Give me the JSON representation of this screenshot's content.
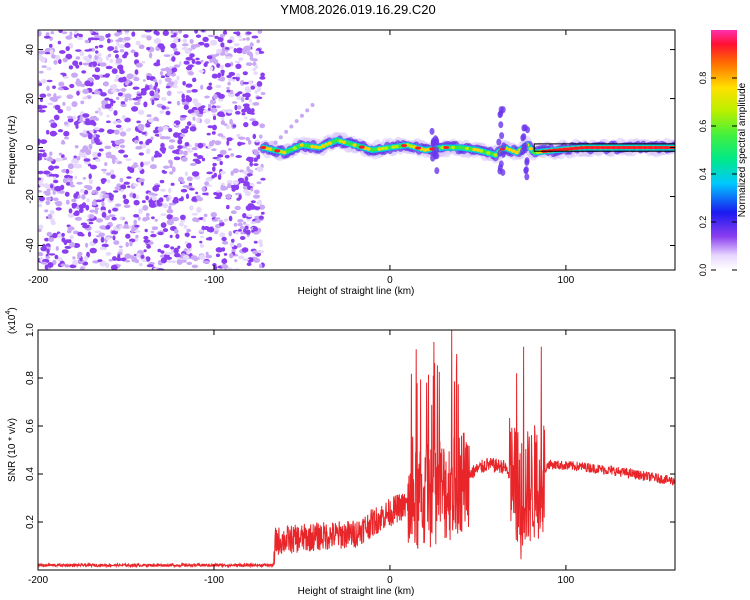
{
  "figure_title": "YM08.2026.019.16.29.C20",
  "colors": {
    "line": "#e8262a",
    "axis": "#000000",
    "scatter": "#8a3ef0",
    "scatter_light": "#c9a8f5"
  },
  "chart_data": [
    {
      "type": "heatmap",
      "title": "",
      "xlabel": "Height of straight line (km)",
      "ylabel": "Frequency (Hz)",
      "xlim": [
        -200,
        162
      ],
      "ylim": [
        -50,
        48
      ],
      "xticks": [
        -200,
        -100,
        0,
        100
      ],
      "yticks": [
        -40,
        -20,
        0,
        20,
        40
      ],
      "noise_region_x": [
        -200,
        -72
      ],
      "signal_band": {
        "segments": [
          {
            "x": -72,
            "y": 0
          },
          {
            "x": -60,
            "y": -2
          },
          {
            "x": -50,
            "y": 1
          },
          {
            "x": -40,
            "y": 0
          },
          {
            "x": -30,
            "y": 3
          },
          {
            "x": -20,
            "y": 1
          },
          {
            "x": -10,
            "y": -1
          },
          {
            "x": 0,
            "y": 0
          },
          {
            "x": 10,
            "y": 1
          },
          {
            "x": 20,
            "y": -1
          },
          {
            "x": 30,
            "y": 0
          },
          {
            "x": 40,
            "y": 0
          },
          {
            "x": 50,
            "y": -1
          },
          {
            "x": 60,
            "y": -3
          },
          {
            "x": 65,
            "y": 0
          },
          {
            "x": 72,
            "y": -2
          },
          {
            "x": 78,
            "y": 1
          },
          {
            "x": 82,
            "y": -2
          },
          {
            "x": 95,
            "y": -1
          },
          {
            "x": 110,
            "y": 0
          },
          {
            "x": 130,
            "y": 0
          },
          {
            "x": 162,
            "y": 0
          }
        ],
        "bursts": [
          {
            "x": 63,
            "y_min": -12,
            "y_max": 16
          },
          {
            "x": 25,
            "y_min": -10,
            "y_max": 14
          },
          {
            "x": 77,
            "y_min": -12,
            "y_max": 10
          }
        ]
      },
      "colorbar": {
        "label": "Normalized spectral amplitude",
        "ticks": [
          0.0,
          0.2,
          0.4,
          0.6,
          0.8
        ],
        "tick_labels": [
          "0.0",
          "0.2",
          "0.4",
          "0.6",
          "0.8"
        ],
        "range": [
          0,
          1
        ]
      }
    },
    {
      "type": "line",
      "title": "",
      "xlabel": "Height of straight line (km)",
      "ylabel": "SNR (10 * v/v)",
      "y_multiplier": "(x10",
      "y_multiplier_exp": "4",
      "y_multiplier_close": ")",
      "xlim": [
        -200,
        162
      ],
      "ylim": [
        0,
        1.0
      ],
      "xticks": [
        -200,
        -100,
        0,
        100
      ],
      "yticks": [
        0.2,
        0.4,
        0.6,
        0.8,
        1.0
      ],
      "ytick_labels": [
        "0.2",
        "0.4",
        "0.6",
        "0.8",
        "1.0"
      ],
      "series_profile": [
        {
          "x": -200,
          "y": 0.02
        },
        {
          "x": -66,
          "y": 0.02
        },
        {
          "x": -65,
          "y": 0.12
        },
        {
          "x": -40,
          "y": 0.14
        },
        {
          "x": -20,
          "y": 0.15
        },
        {
          "x": -5,
          "y": 0.22
        },
        {
          "x": 5,
          "y": 0.26
        },
        {
          "x": 15,
          "y": 0.28
        },
        {
          "x": 25,
          "y": 0.32
        },
        {
          "x": 35,
          "y": 0.34
        },
        {
          "x": 45,
          "y": 0.4
        },
        {
          "x": 55,
          "y": 0.44
        },
        {
          "x": 65,
          "y": 0.43
        },
        {
          "x": 75,
          "y": 0.32
        },
        {
          "x": 85,
          "y": 0.38
        },
        {
          "x": 90,
          "y": 0.44
        },
        {
          "x": 110,
          "y": 0.43
        },
        {
          "x": 130,
          "y": 0.41
        },
        {
          "x": 162,
          "y": 0.37
        }
      ],
      "peaks": [
        {
          "x": 15,
          "y": 0.92
        },
        {
          "x": 25,
          "y": 0.95
        },
        {
          "x": 35,
          "y": 1.0
        },
        {
          "x": 38,
          "y": 0.9
        },
        {
          "x": 72,
          "y": 0.82
        },
        {
          "x": 76,
          "y": 0.93
        },
        {
          "x": 86,
          "y": 0.93
        }
      ]
    }
  ]
}
